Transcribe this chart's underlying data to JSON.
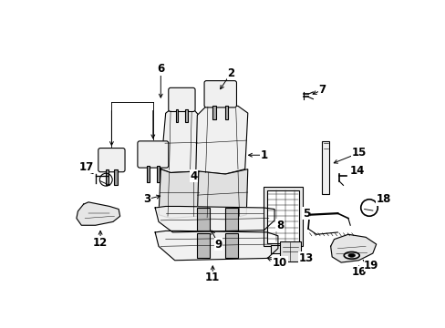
{
  "background_color": "#ffffff",
  "line_color": "#000000",
  "fill_light": "#f0f0f0",
  "fill_mid": "#e0e0e0",
  "fill_dark": "#cccccc"
}
